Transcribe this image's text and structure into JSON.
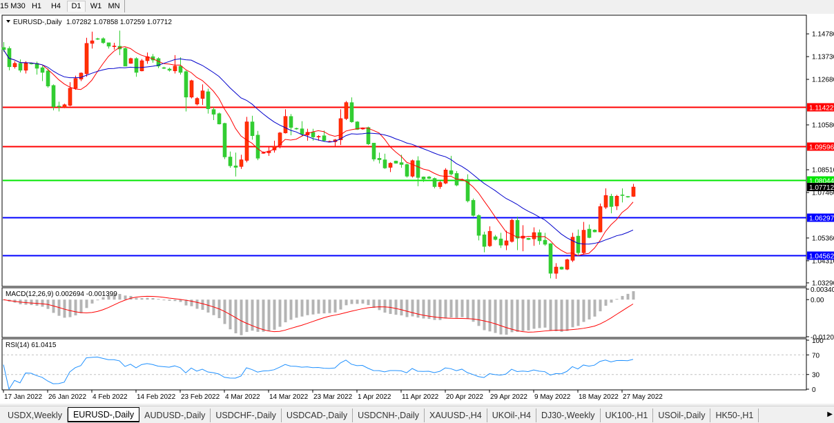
{
  "timeframes": [
    {
      "label": "15",
      "active": false
    },
    {
      "label": "M30",
      "active": false
    },
    {
      "label": "H1",
      "active": false
    },
    {
      "label": "H4",
      "active": false
    },
    {
      "label": "D1",
      "active": true
    },
    {
      "label": "W1",
      "active": false
    },
    {
      "label": "MN",
      "active": false
    }
  ],
  "chart": {
    "header": "EURUSD-,Daily",
    "ohlc_text": "1.07282 1.07858 1.07259 1.07712",
    "price_range": [
      1.0316,
      1.1561
    ],
    "price_ticks": [
      "1.14780",
      "1.13730",
      "1.12680",
      "1.10580",
      "1.08510",
      "1.07460",
      "1.05360",
      "1.04310",
      "1.03290"
    ],
    "colors": {
      "bull": "#ff3300",
      "bull_border": "#ff0000",
      "bear": "#32cd32",
      "ma_fast": "#ff0000",
      "ma_slow": "#0000cc"
    },
    "levels": [
      {
        "price": 1.11422,
        "label": "1.11422",
        "color": "#ff0000"
      },
      {
        "price": 1.09596,
        "label": "1.09596",
        "color": "#ff0000"
      },
      {
        "price": 1.08044,
        "label": "1.08044",
        "color": "#00e600"
      },
      {
        "price": 1.06297,
        "label": "1.06297",
        "color": "#0000ff"
      },
      {
        "price": 1.04562,
        "label": "1.04562",
        "color": "#0000ff"
      }
    ],
    "current_price": {
      "price": 1.07712,
      "label": "1.07712",
      "color": "#000000"
    },
    "candles": [
      [
        1.1415,
        1.144,
        1.1395,
        1.1405
      ],
      [
        1.1411,
        1.142,
        1.131,
        1.1326
      ],
      [
        1.1326,
        1.1352,
        1.1318,
        1.1342
      ],
      [
        1.1342,
        1.136,
        1.13,
        1.131
      ],
      [
        1.131,
        1.1352,
        1.1295,
        1.1342
      ],
      [
        1.1342,
        1.1345,
        1.1337,
        1.134
      ],
      [
        1.1342,
        1.135,
        1.129,
        1.1319
      ],
      [
        1.1322,
        1.133,
        1.126,
        1.13
      ],
      [
        1.1307,
        1.1318,
        1.123,
        1.1237
      ],
      [
        1.124,
        1.1245,
        1.1125,
        1.1142
      ],
      [
        1.1145,
        1.1165,
        1.112,
        1.1143
      ],
      [
        1.1138,
        1.1156,
        1.1135,
        1.1151
      ],
      [
        1.1148,
        1.1255,
        1.1144,
        1.1227
      ],
      [
        1.1227,
        1.1285,
        1.122,
        1.1272
      ],
      [
        1.1269,
        1.13,
        1.126,
        1.1297
      ],
      [
        1.1294,
        1.146,
        1.128,
        1.1434
      ],
      [
        1.1434,
        1.1488,
        1.141,
        1.1446
      ],
      [
        1.1456,
        1.146,
        1.145,
        1.1454
      ],
      [
        1.1456,
        1.1462,
        1.1432,
        1.1437
      ],
      [
        1.1437,
        1.1437,
        1.141,
        1.1421
      ],
      [
        1.142,
        1.1437,
        1.1405,
        1.1422
      ],
      [
        1.1421,
        1.1493,
        1.138,
        1.1408
      ],
      [
        1.1411,
        1.1415,
        1.1329,
        1.1329
      ],
      [
        1.1342,
        1.1368,
        1.134,
        1.1364
      ],
      [
        1.1364,
        1.137,
        1.128,
        1.13
      ],
      [
        1.1307,
        1.1362,
        1.1305,
        1.1354
      ],
      [
        1.1354,
        1.1392,
        1.134,
        1.1373
      ],
      [
        1.1373,
        1.1385,
        1.1345,
        1.1357
      ],
      [
        1.1364,
        1.137,
        1.132,
        1.1329
      ],
      [
        1.1322,
        1.1326,
        1.1316,
        1.132
      ],
      [
        1.1316,
        1.1322,
        1.1304,
        1.131
      ],
      [
        1.1307,
        1.138,
        1.1295,
        1.1329
      ],
      [
        1.1329,
        1.137,
        1.129,
        1.13
      ],
      [
        1.1304,
        1.131,
        1.112,
        1.1186
      ],
      [
        1.1186,
        1.1266,
        1.118,
        1.1262
      ],
      [
        1.1154,
        1.1186,
        1.1148,
        1.118
      ],
      [
        1.118,
        1.1245,
        1.115,
        1.1215
      ],
      [
        1.1211,
        1.1225,
        1.111,
        1.1132
      ],
      [
        1.1129,
        1.114,
        1.108,
        1.1107
      ],
      [
        1.111,
        1.1115,
        1.106,
        1.1062
      ],
      [
        1.1065,
        1.1068,
        1.09,
        1.091
      ],
      [
        1.091,
        1.0935,
        1.086,
        1.0869
      ],
      [
        1.0869,
        1.093,
        1.082,
        1.0862
      ],
      [
        1.0866,
        1.092,
        1.0855,
        1.0897
      ],
      [
        1.0894,
        1.1095,
        1.0885,
        1.1072
      ],
      [
        1.1072,
        1.11,
        1.099,
        1.1008
      ],
      [
        1.1011,
        1.103,
        1.0895,
        1.0904
      ],
      [
        1.0928,
        1.0935,
        1.0925,
        1.093
      ],
      [
        1.0929,
        1.0958,
        1.0915,
        1.0937
      ],
      [
        1.0942,
        1.0985,
        1.093,
        1.096
      ],
      [
        1.0964,
        1.1025,
        1.095,
        1.1021
      ],
      [
        1.1021,
        1.113,
        1.1018,
        1.1097
      ],
      [
        1.1097,
        1.1108,
        1.101,
        1.1046
      ],
      [
        1.1042,
        1.1045,
        1.1036,
        1.104
      ],
      [
        1.104,
        1.1075,
        1.1005,
        1.1015
      ],
      [
        1.1011,
        1.104,
        1.0985,
        1.1024
      ],
      [
        1.1024,
        1.104,
        1.0985,
        1.1002
      ],
      [
        1.1004,
        1.101,
        1.0985,
        1.1005
      ],
      [
        1.1008,
        1.1032,
        1.098,
        1.0986
      ],
      [
        1.098,
        1.0985,
        1.0978,
        1.0982
      ],
      [
        1.098,
        1.0993,
        1.096,
        1.0989
      ],
      [
        1.0989,
        1.113,
        1.0965,
        1.1087
      ],
      [
        1.1087,
        1.1168,
        1.108,
        1.1161
      ],
      [
        1.1161,
        1.1185,
        1.1068,
        1.1072
      ],
      [
        1.1072,
        1.1075,
        1.1035,
        1.1037
      ],
      [
        1.104,
        1.1045,
        1.1036,
        1.1042
      ],
      [
        1.1046,
        1.105,
        1.0965,
        1.097
      ],
      [
        1.0974,
        1.0975,
        1.089,
        1.09
      ],
      [
        1.0904,
        1.093,
        1.088,
        1.0897
      ],
      [
        1.0897,
        1.0925,
        1.0855,
        1.0859
      ],
      [
        1.0862,
        1.0885,
        1.084,
        1.0881
      ],
      [
        1.0891,
        1.0893,
        1.0879,
        1.0881
      ],
      [
        1.0884,
        1.092,
        1.086,
        1.0875
      ],
      [
        1.0875,
        1.088,
        1.0815,
        1.0821
      ],
      [
        1.0821,
        1.0898,
        1.0815,
        1.0893
      ],
      [
        1.0893,
        1.0913,
        1.0775,
        1.0815
      ],
      [
        1.0818,
        1.082,
        1.0795,
        1.0808
      ],
      [
        1.0818,
        1.0822,
        1.0808,
        1.0811
      ],
      [
        1.0811,
        1.0815,
        1.0765,
        1.0773
      ],
      [
        1.0773,
        1.08,
        1.0763,
        1.0792
      ],
      [
        1.0789,
        1.0858,
        1.0785,
        1.085
      ],
      [
        1.0847,
        1.0915,
        1.0825,
        1.0831
      ],
      [
        1.0834,
        1.0845,
        1.0775,
        1.078
      ],
      [
        1.0804,
        1.081,
        1.08,
        1.0806
      ],
      [
        1.0806,
        1.083,
        1.07,
        1.0707
      ],
      [
        1.071,
        1.0718,
        1.0635,
        1.064
      ],
      [
        1.064,
        1.0645,
        1.0525,
        1.0548
      ],
      [
        1.0551,
        1.0565,
        1.047,
        1.0497
      ],
      [
        1.05,
        1.059,
        1.0495,
        1.0567
      ],
      [
        1.0542,
        1.055,
        1.0525,
        1.0529
      ],
      [
        1.0532,
        1.056,
        1.049,
        1.0503
      ],
      [
        1.0503,
        1.057,
        1.048,
        1.0523
      ],
      [
        1.052,
        1.0625,
        1.0515,
        1.0618
      ],
      [
        1.0618,
        1.0635,
        1.048,
        1.0535
      ],
      [
        1.0535,
        1.0595,
        1.0475,
        1.0545
      ],
      [
        1.0535,
        1.0537,
        1.0527,
        1.0529
      ],
      [
        1.0532,
        1.0585,
        1.05,
        1.0561
      ],
      [
        1.0561,
        1.0575,
        1.0505,
        1.0523
      ],
      [
        1.0526,
        1.056,
        1.05,
        1.0507
      ],
      [
        1.051,
        1.0512,
        1.035,
        1.0373
      ],
      [
        1.0373,
        1.042,
        1.0348,
        1.0402
      ],
      [
        1.0402,
        1.0404,
        1.039,
        1.0392
      ],
      [
        1.0392,
        1.044,
        1.0388,
        1.0436
      ],
      [
        1.0433,
        1.056,
        1.0425,
        1.054
      ],
      [
        1.0545,
        1.0575,
        1.0455,
        1.0468
      ],
      [
        1.0468,
        1.061,
        1.046,
        1.0572
      ],
      [
        1.0577,
        1.0598,
        1.0535,
        1.0538
      ],
      [
        1.0573,
        1.0576,
        1.0562,
        1.0564
      ],
      [
        1.0564,
        1.0695,
        1.0562,
        1.0681
      ],
      [
        1.0678,
        1.0765,
        1.067,
        1.0732
      ],
      [
        1.0729,
        1.074,
        1.065,
        1.0681
      ],
      [
        1.0684,
        1.0735,
        1.0665,
        1.0729
      ],
      [
        1.0735,
        1.0765,
        1.07,
        1.0732
      ],
      [
        1.0728,
        1.073,
        1.0722,
        1.0726
      ],
      [
        1.07282,
        1.07858,
        1.07259,
        1.07712
      ]
    ],
    "dates": [
      {
        "index": 0,
        "label": "17 Jan 2022"
      },
      {
        "index": 8,
        "label": "26 Jan 2022"
      },
      {
        "index": 16,
        "label": "4 Feb 2022"
      },
      {
        "index": 24,
        "label": "14 Feb 2022"
      },
      {
        "index": 32,
        "label": "23 Feb 2022"
      },
      {
        "index": 40,
        "label": "4 Mar 2022"
      },
      {
        "index": 48,
        "label": "14 Mar 2022"
      },
      {
        "index": 56,
        "label": "23 Mar 2022"
      },
      {
        "index": 64,
        "label": "1 Apr 2022"
      },
      {
        "index": 72,
        "label": "11 Apr 2022"
      },
      {
        "index": 80,
        "label": "20 Apr 2022"
      },
      {
        "index": 88,
        "label": "29 Apr 2022"
      },
      {
        "index": 96,
        "label": "9 May 2022"
      },
      {
        "index": 104,
        "label": "18 May 2022"
      },
      {
        "index": 112,
        "label": "27 May 2022"
      }
    ]
  },
  "macd": {
    "label": "MACD(12,26,9) 0.002694 -0.001399",
    "range": [
      -0.012058,
      0.003408
    ],
    "ticks": [
      "0.003408",
      "0.00",
      "-0.012058"
    ],
    "hist_color": "#b4b4b4",
    "signal_color": "#ff0000"
  },
  "rsi": {
    "label": "RSI(14) 61.0415",
    "range": [
      0,
      100
    ],
    "ticks": [
      "100",
      "70",
      "30",
      "0"
    ],
    "levels": [
      70,
      30
    ],
    "line_color": "#1e90ff"
  },
  "tabs": [
    {
      "label": "USDX,Weekly",
      "active": false
    },
    {
      "label": "EURUSD-,Daily",
      "active": true
    },
    {
      "label": "AUDUSD-,Daily",
      "active": false
    },
    {
      "label": "USDCHF-,Daily",
      "active": false
    },
    {
      "label": "USDCAD-,Daily",
      "active": false
    },
    {
      "label": "USDCNH-,Daily",
      "active": false
    },
    {
      "label": "XAUUSD-,H4",
      "active": false
    },
    {
      "label": "UKOil-,H4",
      "active": false
    },
    {
      "label": "DJ30-,Weekly",
      "active": false
    },
    {
      "label": "UK100-,H1",
      "active": false
    },
    {
      "label": "USOil-,Daily",
      "active": false
    },
    {
      "label": "HK50-,H1",
      "active": false
    }
  ]
}
